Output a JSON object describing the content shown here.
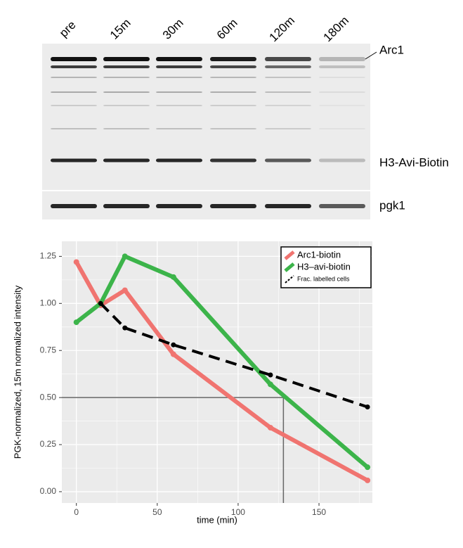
{
  "blot": {
    "lanes": [
      "pre",
      "15m",
      "30m",
      "60m",
      "120m",
      "180m"
    ],
    "band_labels": [
      "Arc1",
      "H3-Avi-Biotin",
      "pgk1"
    ]
  },
  "chart_data": {
    "type": "line",
    "x_label": "time (min)",
    "y_label": "PGK-normalized, 15m normalized intensity",
    "xlim": [
      -9,
      183
    ],
    "ylim": [
      -0.06,
      1.33
    ],
    "xticks": [
      0,
      50,
      100,
      150
    ],
    "yticks": [
      {
        "value": 0,
        "label": "0.00"
      },
      {
        "value": 0.25,
        "label": "0.25"
      },
      {
        "value": 0.5,
        "label": "0.50"
      },
      {
        "value": 0.75,
        "label": "0.75"
      },
      {
        "value": 1,
        "label": "1.00"
      },
      {
        "value": 1.25,
        "label": "1.25"
      }
    ],
    "grid": true,
    "legend": "top-right",
    "series": [
      {
        "name": "Arc1-biotin",
        "color": "#f07470",
        "dash": false,
        "x": [
          0,
          15,
          30,
          60,
          120,
          180
        ],
        "values": [
          1.22,
          0.99,
          1.07,
          0.73,
          0.34,
          0.06
        ]
      },
      {
        "name": "H3–avi-biotin",
        "color": "#3cb44a",
        "dash": false,
        "x": [
          0,
          15,
          30,
          60,
          120,
          180
        ],
        "values": [
          0.9,
          1.0,
          1.25,
          1.14,
          0.57,
          0.13
        ]
      },
      {
        "name": "Frac. labelled cells",
        "color": "#000000",
        "dash": true,
        "x": [
          15,
          30,
          60,
          120,
          180
        ],
        "values": [
          1.0,
          0.87,
          0.78,
          0.62,
          0.45
        ]
      }
    ],
    "reference_lines": {
      "x": 128,
      "y": 0.5
    }
  }
}
